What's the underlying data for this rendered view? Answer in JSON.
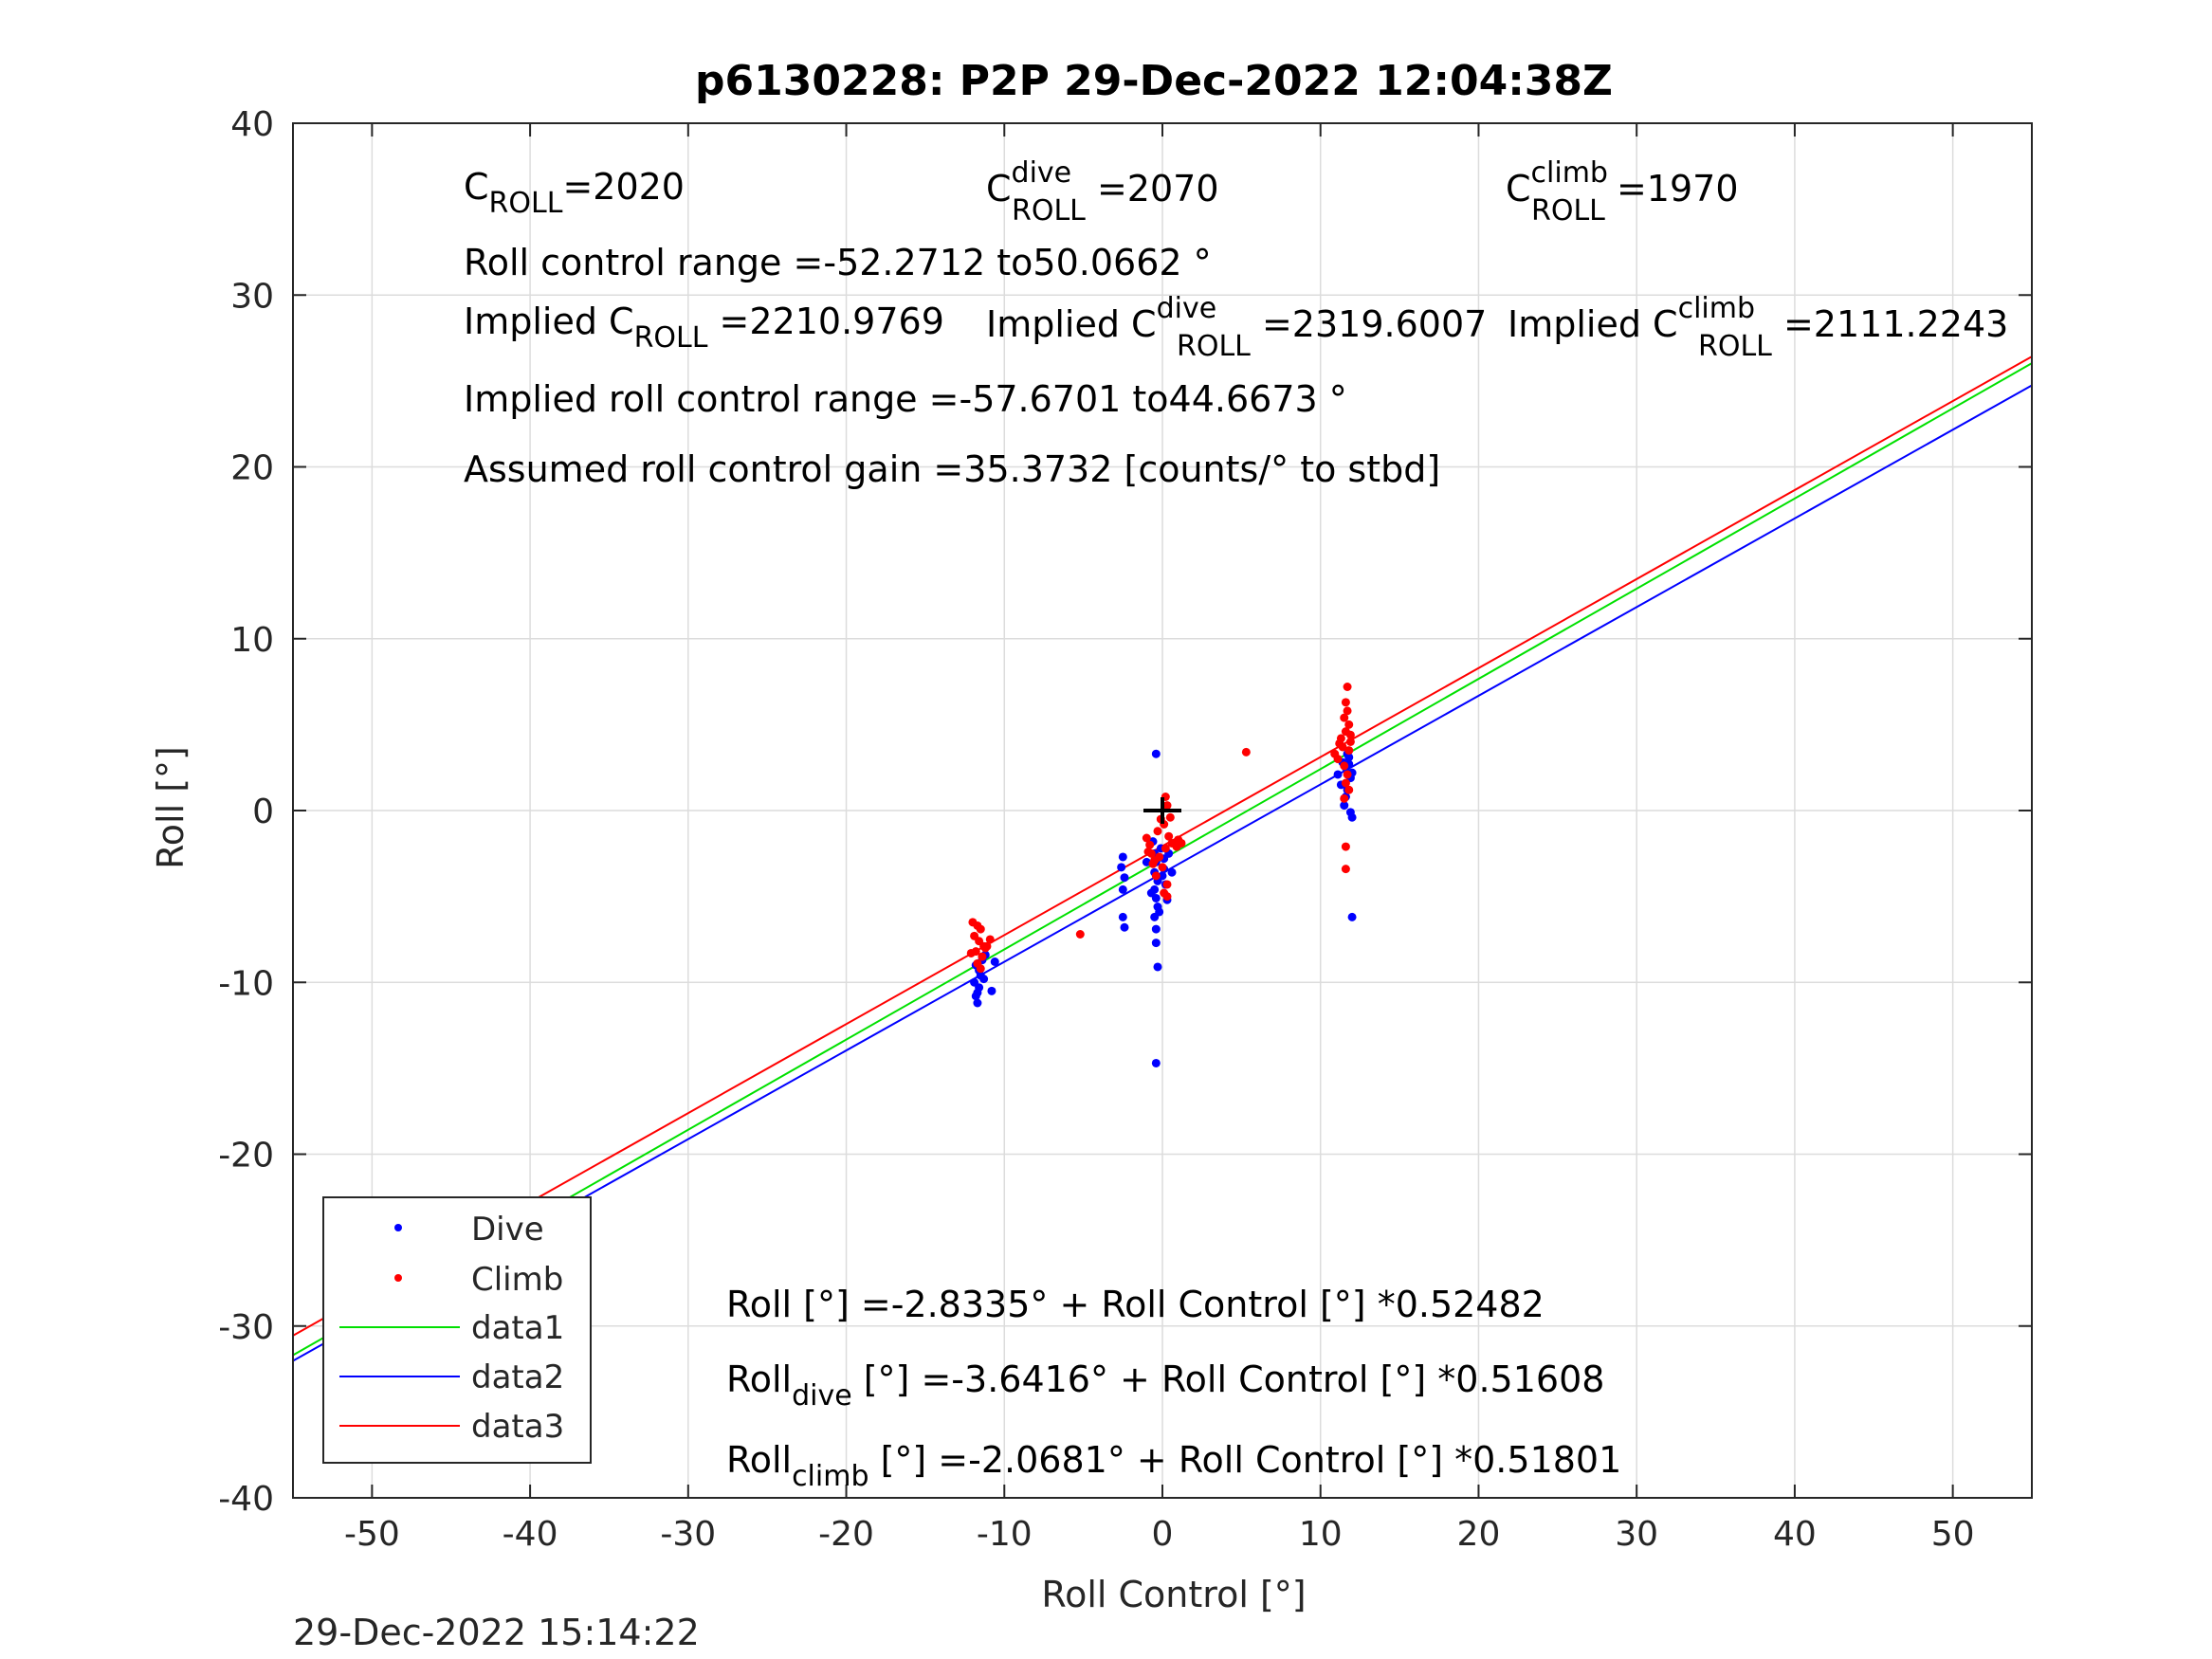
{
  "chart_data": {
    "type": "scatter",
    "title": "p6130228: P2P 29-Dec-2022 12:04:38Z",
    "xlabel": "Roll Control [°]",
    "ylabel": "Roll [°]",
    "xlim": [
      -55,
      55
    ],
    "ylim": [
      -40,
      40
    ],
    "xticks": [
      -50,
      -40,
      -30,
      -20,
      -10,
      0,
      10,
      20,
      30,
      40,
      50
    ],
    "yticks": [
      -40,
      -30,
      -20,
      -10,
      0,
      10,
      20,
      30,
      40
    ],
    "grid": true,
    "legend_position": "bottom-left",
    "colors": {
      "dive": "#0000ff",
      "climb": "#ff0000",
      "data1": "#00e000",
      "data2": "#0000ff",
      "data3": "#ff0000",
      "marker": "#000000",
      "grid": "#dcdcdc"
    },
    "series": [
      {
        "name": "Dive",
        "kind": "points",
        "points": [
          [
            -11.8,
            -10.8
          ],
          [
            -11.7,
            -11.2
          ],
          [
            -11.6,
            -10.3
          ],
          [
            -11.5,
            -9.6
          ],
          [
            -11.8,
            -9.0
          ],
          [
            -11.4,
            -8.7
          ],
          [
            -11.9,
            -10.0
          ],
          [
            -11.6,
            -9.3
          ],
          [
            -11.3,
            -9.8
          ],
          [
            -11.7,
            -10.6
          ],
          [
            -11.2,
            -8.4
          ],
          [
            -10.8,
            -10.5
          ],
          [
            -10.6,
            -8.8
          ],
          [
            -2.5,
            -2.7
          ],
          [
            -2.6,
            -3.3
          ],
          [
            -2.4,
            -3.9
          ],
          [
            -2.5,
            -4.6
          ],
          [
            -2.5,
            -6.2
          ],
          [
            -2.4,
            -6.8
          ],
          [
            -0.4,
            3.3
          ],
          [
            -0.5,
            -2.5
          ],
          [
            -0.4,
            -3.0
          ],
          [
            -0.5,
            -3.6
          ],
          [
            -0.3,
            -4.1
          ],
          [
            -0.5,
            -4.6
          ],
          [
            -0.4,
            -5.1
          ],
          [
            -0.3,
            -5.6
          ],
          [
            -0.5,
            -6.2
          ],
          [
            -0.4,
            -6.9
          ],
          [
            -0.4,
            -7.7
          ],
          [
            -0.3,
            -9.1
          ],
          [
            -0.4,
            -14.7
          ],
          [
            -0.6,
            -1.8
          ],
          [
            -0.1,
            -2.2
          ],
          [
            0.1,
            -3.4
          ],
          [
            0.2,
            -4.3
          ],
          [
            0.3,
            -5.2
          ],
          [
            -0.2,
            -5.9
          ],
          [
            0.1,
            -2.8
          ],
          [
            -0.7,
            -4.8
          ],
          [
            0.4,
            -2.5
          ],
          [
            -1.0,
            -3.0
          ],
          [
            0.0,
            -3.8
          ],
          [
            0.6,
            -3.6
          ],
          [
            11.1,
            2.1
          ],
          [
            11.3,
            1.5
          ],
          [
            11.6,
            0.8
          ],
          [
            11.8,
            2.7
          ],
          [
            11.9,
            1.9
          ],
          [
            11.7,
            1.2
          ],
          [
            12.0,
            -0.4
          ],
          [
            11.9,
            -0.1
          ],
          [
            11.5,
            0.3
          ],
          [
            12.0,
            -6.2
          ],
          [
            11.8,
            3.1
          ],
          [
            11.6,
            2.5
          ],
          [
            12.0,
            2.2
          ],
          [
            11.4,
            2.8
          ],
          [
            11.7,
            3.3
          ]
        ]
      },
      {
        "name": "Climb",
        "kind": "points",
        "points": [
          [
            -12.0,
            -6.5
          ],
          [
            -11.7,
            -6.7
          ],
          [
            -11.5,
            -6.9
          ],
          [
            -11.9,
            -7.3
          ],
          [
            -11.6,
            -7.6
          ],
          [
            -11.3,
            -7.9
          ],
          [
            -11.8,
            -8.2
          ],
          [
            -11.4,
            -8.5
          ],
          [
            -11.7,
            -8.9
          ],
          [
            -12.1,
            -8.3
          ],
          [
            -10.9,
            -7.5
          ],
          [
            -11.1,
            -7.9
          ],
          [
            -11.5,
            -9.2
          ],
          [
            -11.2,
            -8.0
          ],
          [
            -5.2,
            -7.2
          ],
          [
            5.3,
            3.4
          ],
          [
            -1.0,
            -1.6
          ],
          [
            -0.8,
            -2.0
          ],
          [
            -0.7,
            -2.5
          ],
          [
            -0.5,
            -2.9
          ],
          [
            -0.3,
            -1.2
          ],
          [
            -0.1,
            -0.5
          ],
          [
            0.2,
            0.8
          ],
          [
            0.3,
            0.3
          ],
          [
            0.1,
            -0.8
          ],
          [
            0.4,
            -1.5
          ],
          [
            0.2,
            -2.2
          ],
          [
            -0.2,
            -2.7
          ],
          [
            0.0,
            -3.3
          ],
          [
            -0.4,
            -3.8
          ],
          [
            0.3,
            -4.3
          ],
          [
            0.1,
            -4.8
          ],
          [
            0.6,
            -1.9
          ],
          [
            0.9,
            -2.1
          ],
          [
            1.0,
            -1.7
          ],
          [
            1.2,
            -1.9
          ],
          [
            -0.6,
            -3.1
          ],
          [
            -0.9,
            -2.4
          ],
          [
            0.5,
            -0.4
          ],
          [
            0.3,
            -5.0
          ],
          [
            11.7,
            7.2
          ],
          [
            11.6,
            6.3
          ],
          [
            11.7,
            5.8
          ],
          [
            11.5,
            5.4
          ],
          [
            11.8,
            5.0
          ],
          [
            11.6,
            4.6
          ],
          [
            11.3,
            4.2
          ],
          [
            11.9,
            4.0
          ],
          [
            11.4,
            3.7
          ],
          [
            11.8,
            3.5
          ],
          [
            10.9,
            3.3
          ],
          [
            11.1,
            3.0
          ],
          [
            11.5,
            2.6
          ],
          [
            11.7,
            2.1
          ],
          [
            11.6,
            1.6
          ],
          [
            11.8,
            1.2
          ],
          [
            11.5,
            0.7
          ],
          [
            11.6,
            -2.1
          ],
          [
            11.6,
            -3.4
          ],
          [
            11.2,
            3.9
          ],
          [
            11.9,
            4.4
          ]
        ]
      },
      {
        "name": "data1",
        "kind": "line",
        "intercept": -2.8335,
        "slope": 0.52482
      },
      {
        "name": "data2",
        "kind": "line",
        "intercept": -3.6416,
        "slope": 0.51608
      },
      {
        "name": "data3",
        "kind": "line",
        "intercept": -2.0681,
        "slope": 0.51801
      }
    ],
    "cross_marker": [
      0,
      0
    ],
    "annotations": {
      "croll_label": "C",
      "croll_sub": "ROLL",
      "croll_value": "=2020",
      "cdive_label": "C",
      "cdive_sup": "dive",
      "cdive_sub": "ROLL",
      "cdive_value": " =2070",
      "cclimb_label": "C",
      "cclimb_sup": "climb",
      "cclimb_sub": "ROLL",
      "cclimb_value": " =1970",
      "roll_range": "Roll control range =-52.2712 to50.0662 °",
      "implied_croll_prefix": "Implied C",
      "implied_croll_sub": "ROLL",
      "implied_croll_value": " =2210.9769",
      "implied_cdive_prefix": "Implied C",
      "implied_cdive_sup": "dive",
      "implied_cdive_sub": "ROLL",
      "implied_cdive_value": " =2319.6007",
      "implied_cclimb_prefix": "Implied C",
      "implied_cclimb_sup": "climb",
      "implied_cclimb_sub": "ROLL",
      "implied_cclimb_value": " =2111.2243",
      "implied_range": "Implied roll control range =-57.6701 to44.6673 °",
      "gain": "Assumed roll control gain =35.3732 [counts/° to stbd]",
      "fit_all": "Roll [°] =-2.8335° + Roll Control [°] *0.52482",
      "fit_dive_pre": "Roll",
      "fit_dive_sub": "dive",
      "fit_dive_post": " [°] =-3.6416° + Roll Control [°] *0.51608",
      "fit_climb_pre": "Roll",
      "fit_climb_sub": "climb",
      "fit_climb_post": " [°] =-2.0681° + Roll Control [°] *0.51801"
    },
    "timestamp": "29-Dec-2022 15:14:22"
  }
}
